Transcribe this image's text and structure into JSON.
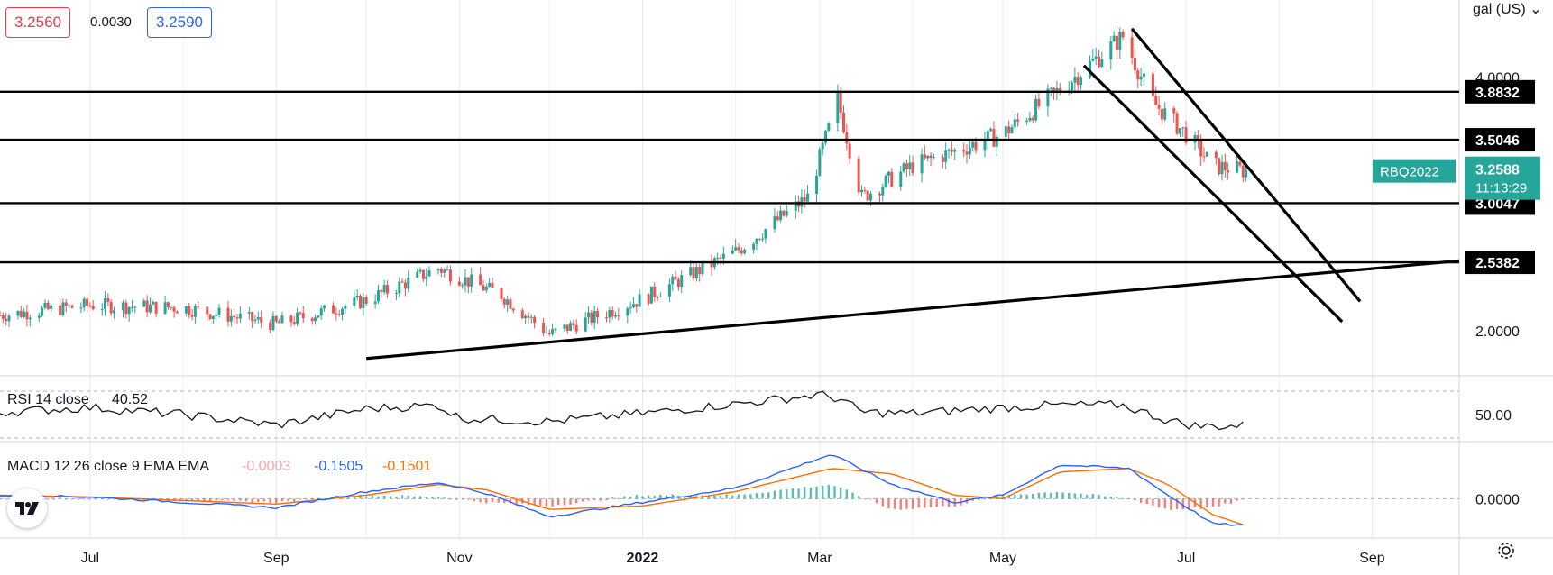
{
  "header": {
    "bid": "3.2560",
    "spread": "0.0030",
    "ask": "3.2590",
    "unit_label": "gal (US)",
    "unit_chevron_icon": "chevron-down-icon"
  },
  "symbol": {
    "ticker": "RBQ2022",
    "last": "3.2588",
    "countdown": "11:13:29",
    "color": "#26a69a"
  },
  "icons": {
    "logo": "tradingview-logo-icon",
    "settings": "gear-icon"
  },
  "colors": {
    "up": "#26a69a",
    "down": "#ef5350",
    "rsi": "#131722",
    "macd": "#2962ff",
    "signal": "#ff6d00",
    "hist_up": "#26a69a",
    "hist_down": "#ef5350"
  },
  "chart_data": [
    {
      "type": "line",
      "title": "",
      "description": "Candlestick price chart, RBOB gasoline RBQ2022",
      "series": [
        {
          "name": "RBQ2022",
          "x": [
            "2021-06-01",
            "2021-07-01",
            "2021-08-01",
            "2021-09-01",
            "2021-10-01",
            "2021-10-25",
            "2021-11-15",
            "2021-12-01",
            "2022-01-01",
            "2022-02-01",
            "2022-02-25",
            "2022-03-07",
            "2022-03-15",
            "2022-04-01",
            "2022-05-01",
            "2022-05-20",
            "2022-06-10",
            "2022-06-20",
            "2022-07-01",
            "2022-07-10",
            "2022-07-21"
          ],
          "values": [
            2.12,
            2.2,
            2.18,
            2.05,
            2.24,
            2.49,
            2.28,
            1.97,
            2.25,
            2.62,
            3.05,
            3.82,
            3.05,
            3.3,
            3.55,
            3.9,
            4.32,
            3.8,
            3.55,
            3.3,
            3.2588
          ]
        }
      ],
      "yaxis": {
        "ticks": [
          "4.0000",
          "2.0000"
        ],
        "range": [
          1.7,
          4.55
        ]
      },
      "xaxis": {
        "ticks": [
          "Jul",
          "Sep",
          "Nov",
          "2022",
          "Mar",
          "May",
          "Jul",
          "Sep"
        ],
        "range": [
          "2021-06-01",
          "2022-09-30"
        ]
      },
      "levels": [
        "3.8832",
        "3.5046",
        "3.0047",
        "2.5382"
      ],
      "trendlines": [
        {
          "name": "rising-support",
          "from": [
            "2021-10-01",
            1.78
          ],
          "to": [
            "2022-09-30",
            2.55
          ]
        },
        {
          "name": "channel-upper",
          "from": [
            "2022-06-13",
            4.38
          ],
          "to": [
            "2022-08-28",
            2.23
          ]
        },
        {
          "name": "channel-lower",
          "from": [
            "2022-05-28",
            4.09
          ],
          "to": [
            "2022-08-22",
            2.07
          ]
        }
      ]
    },
    {
      "type": "line",
      "title": "RSI 14 close",
      "value": "40.52",
      "series": [
        {
          "name": "RSI",
          "x": [
            "2021-06-01",
            "2021-07-01",
            "2021-08-01",
            "2021-09-01",
            "2021-10-01",
            "2021-10-25",
            "2021-11-01",
            "2021-12-01",
            "2022-01-01",
            "2022-02-01",
            "2022-03-01",
            "2022-03-08",
            "2022-03-15",
            "2022-04-01",
            "2022-05-01",
            "2022-05-20",
            "2022-06-10",
            "2022-06-25",
            "2022-07-05",
            "2022-07-21"
          ],
          "values": [
            52,
            56,
            50,
            41,
            55,
            58,
            47,
            44,
            51,
            59,
            67,
            63,
            52,
            51,
            56,
            58,
            58,
            45,
            40,
            40.52
          ]
        }
      ],
      "yaxis": {
        "ticks": [
          "50.00"
        ],
        "range": [
          30,
          80
        ],
        "bands": [
          70,
          30
        ]
      }
    },
    {
      "type": "bar",
      "title": "MACD 12 26 close 9 EMA EMA",
      "values_label": {
        "hist": "-0.0003",
        "macd": "-0.1505",
        "signal": "-0.1501"
      },
      "series": [
        {
          "name": "MACD",
          "x": [
            "2021-06-01",
            "2021-07-01",
            "2021-08-01",
            "2021-09-01",
            "2021-10-01",
            "2021-10-25",
            "2021-11-10",
            "2021-12-01",
            "2022-01-01",
            "2022-02-01",
            "2022-03-05",
            "2022-03-25",
            "2022-04-15",
            "2022-05-01",
            "2022-05-20",
            "2022-06-12",
            "2022-06-25",
            "2022-07-10",
            "2022-07-21"
          ],
          "values": [
            0.02,
            0.01,
            -0.02,
            -0.05,
            0.04,
            0.09,
            0.03,
            -0.1,
            -0.02,
            0.06,
            0.25,
            0.08,
            -0.02,
            0.02,
            0.19,
            0.17,
            0.02,
            -0.14,
            -0.1505
          ]
        },
        {
          "name": "Signal",
          "x": [
            "2021-06-01",
            "2021-07-01",
            "2021-08-01",
            "2021-09-01",
            "2021-10-01",
            "2021-10-25",
            "2021-11-10",
            "2021-12-01",
            "2022-01-01",
            "2022-02-01",
            "2022-03-05",
            "2022-03-25",
            "2022-04-15",
            "2022-05-01",
            "2022-05-20",
            "2022-06-12",
            "2022-06-25",
            "2022-07-10",
            "2022-07-21"
          ],
          "values": [
            0.02,
            0.01,
            -0.01,
            -0.03,
            0.02,
            0.08,
            0.05,
            -0.06,
            -0.04,
            0.04,
            0.17,
            0.14,
            0.02,
            0.0,
            0.15,
            0.17,
            0.08,
            -0.09,
            -0.1501
          ]
        }
      ],
      "yaxis": {
        "ticks": [
          "0.0000"
        ],
        "range": [
          -0.2,
          0.3
        ]
      }
    }
  ]
}
